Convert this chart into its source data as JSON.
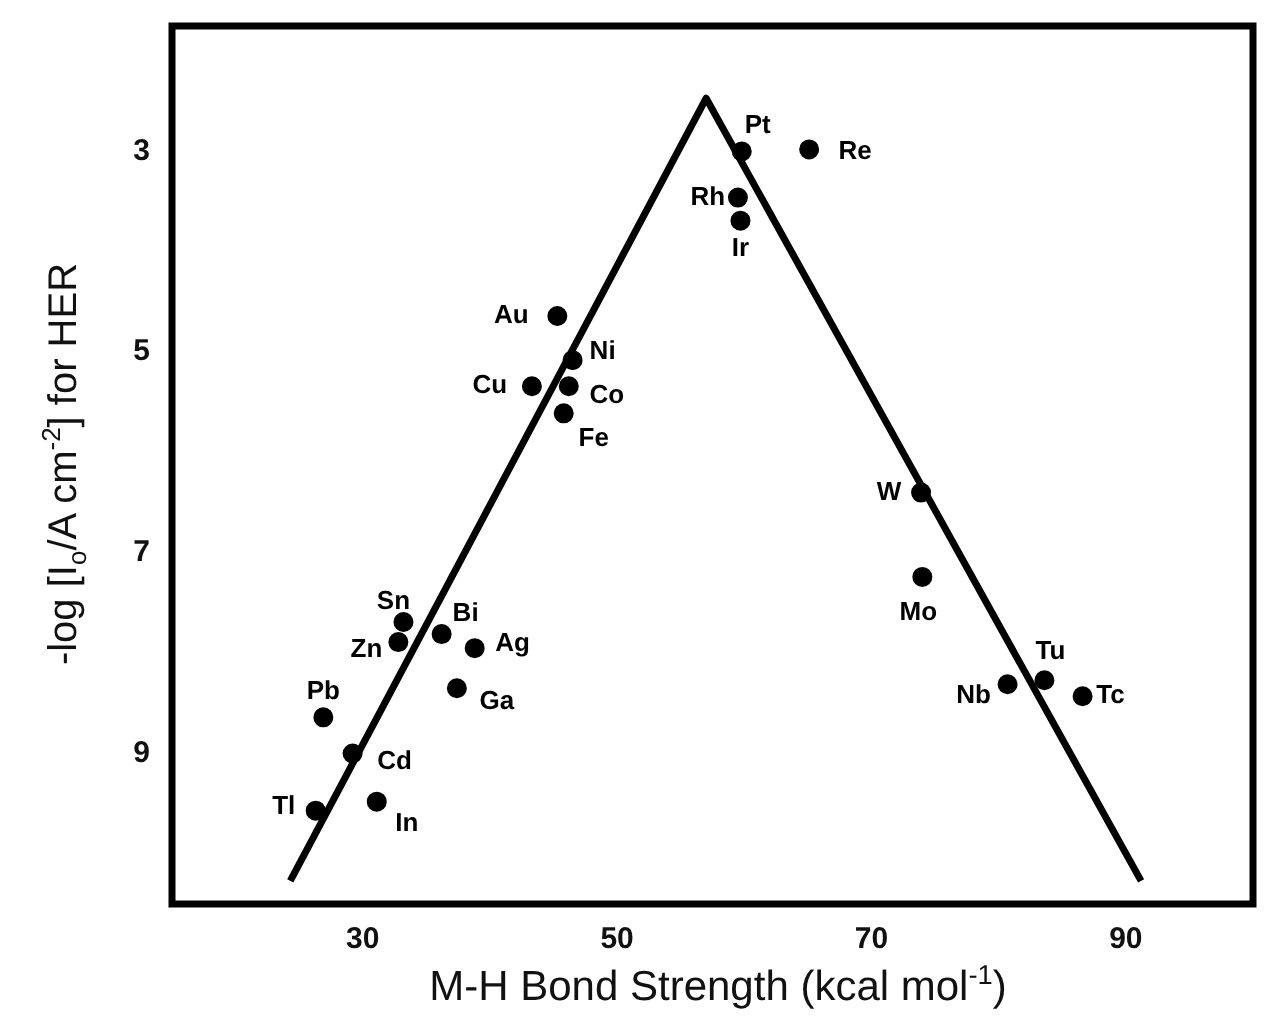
{
  "chart_data": {
    "type": "scatter",
    "xlabel": "M-H Bond Strength (kcal mol$^{-1}$)",
    "ylabel": "-log [I$_{o}$/A cm$^{-2}$] for HER",
    "xlim": [
      15,
      100
    ],
    "ylim": [
      10.5,
      1.75
    ],
    "xticks": [
      30,
      50,
      70,
      90
    ],
    "yticks": [
      3,
      5,
      7,
      9
    ],
    "grid": false,
    "legend": false,
    "marker": "circle",
    "series": [
      {
        "color": "#000000",
        "x": [
          59.8,
          65.1,
          59.5,
          59.7,
          45.3,
          46.5,
          46.2,
          43.3,
          45.8,
          73.9,
          74.0,
          80.7,
          83.6,
          86.6,
          33.2,
          32.8,
          36.2,
          38.8,
          37.4,
          26.9,
          29.2,
          26.3,
          31.1
        ],
        "values": [
          3.0,
          2.98,
          3.46,
          3.69,
          4.64,
          5.08,
          5.34,
          5.34,
          5.61,
          6.4,
          7.24,
          8.31,
          8.27,
          8.43,
          7.69,
          7.89,
          7.81,
          7.95,
          8.35,
          8.64,
          9.0,
          9.57,
          9.48
        ]
      },
      {
        "type": "line",
        "color": "#000000",
        "marker": "none",
        "x": [
          24.3,
          57.0,
          91.2
        ],
        "values": [
          10.27,
          2.47,
          10.27
        ]
      }
    ],
    "annotations": [
      {
        "text": "Pt",
        "x": 59.8,
        "y": 3.0
      },
      {
        "text": "Re",
        "x": 65.1,
        "y": 2.98
      },
      {
        "text": "Rh",
        "x": 59.5,
        "y": 3.46
      },
      {
        "text": "Ir",
        "x": 59.7,
        "y": 3.69
      },
      {
        "text": "Au",
        "x": 45.3,
        "y": 4.64
      },
      {
        "text": "Ni",
        "x": 46.5,
        "y": 5.08
      },
      {
        "text": "Co",
        "x": 46.2,
        "y": 5.34
      },
      {
        "text": "Cu",
        "x": 43.3,
        "y": 5.34
      },
      {
        "text": "Fe",
        "x": 45.8,
        "y": 5.61
      },
      {
        "text": "W",
        "x": 73.9,
        "y": 6.4
      },
      {
        "text": "Mo",
        "x": 74.0,
        "y": 7.24
      },
      {
        "text": "Nb",
        "x": 80.7,
        "y": 8.31
      },
      {
        "text": "Tu",
        "x": 83.6,
        "y": 8.27
      },
      {
        "text": "Tc",
        "x": 86.6,
        "y": 8.43
      },
      {
        "text": "Sn",
        "x": 33.2,
        "y": 7.69
      },
      {
        "text": "Zn",
        "x": 32.8,
        "y": 7.89
      },
      {
        "text": "Bi",
        "x": 36.2,
        "y": 7.81
      },
      {
        "text": "Ag",
        "x": 38.8,
        "y": 7.95
      },
      {
        "text": "Ga",
        "x": 37.4,
        "y": 8.35
      },
      {
        "text": "Pb",
        "x": 26.9,
        "y": 8.64
      },
      {
        "text": "Cd",
        "x": 29.2,
        "y": 9.0
      },
      {
        "text": "Tl",
        "x": 26.3,
        "y": 9.57
      },
      {
        "text": "In",
        "x": 31.1,
        "y": 9.48
      }
    ]
  }
}
